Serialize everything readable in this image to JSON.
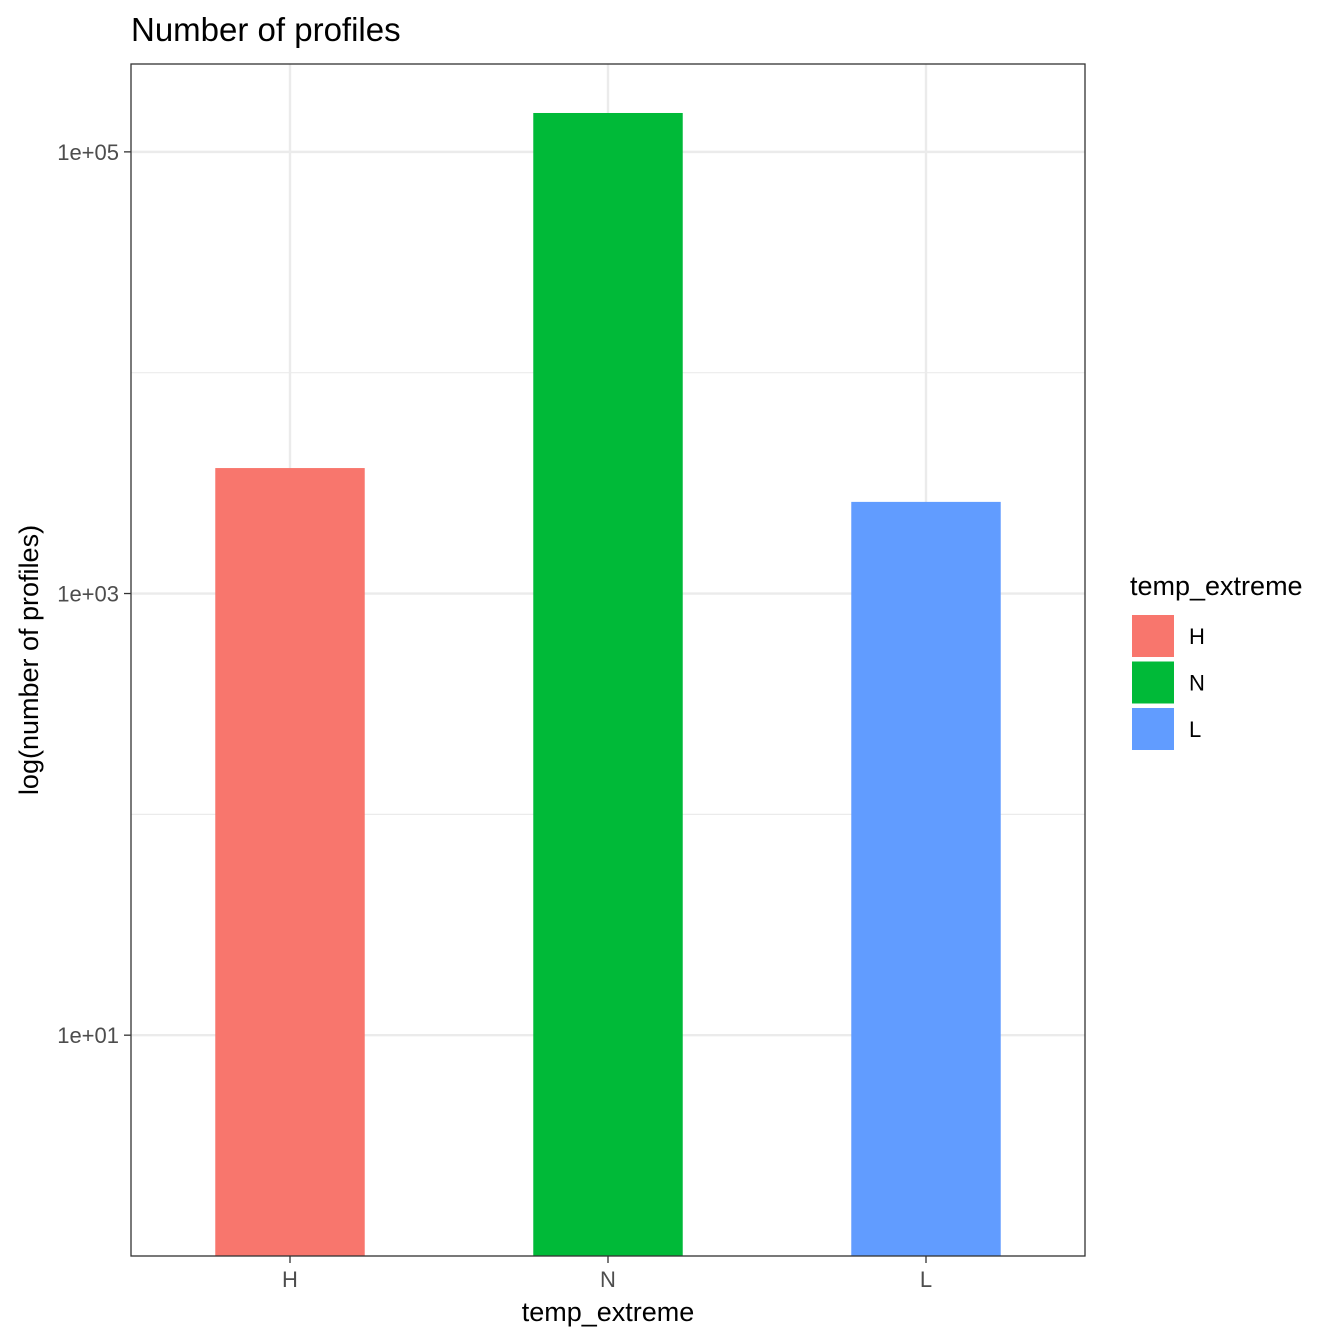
{
  "chart_data": {
    "type": "bar",
    "title": "Number of profiles",
    "xlabel": "temp_extreme",
    "ylabel": "log(number of profiles)",
    "y_scale": "log10",
    "categories": [
      "H",
      "N",
      "L"
    ],
    "values": [
      3700,
      150000,
      2600
    ],
    "ylim": [
      1,
      250000
    ],
    "y_ticks": [
      {
        "value": 10,
        "label": "1e+01"
      },
      {
        "value": 1000,
        "label": "1e+03"
      },
      {
        "value": 100000,
        "label": "1e+05"
      }
    ],
    "grid": true,
    "legend": {
      "title": "temp_extreme",
      "placement": "right",
      "entries": [
        {
          "label": "H",
          "color": "#F8766D"
        },
        {
          "label": "N",
          "color": "#00BA38"
        },
        {
          "label": "L",
          "color": "#619CFF"
        }
      ]
    },
    "colors": [
      "#F8766D",
      "#00BA38",
      "#619CFF"
    ]
  }
}
